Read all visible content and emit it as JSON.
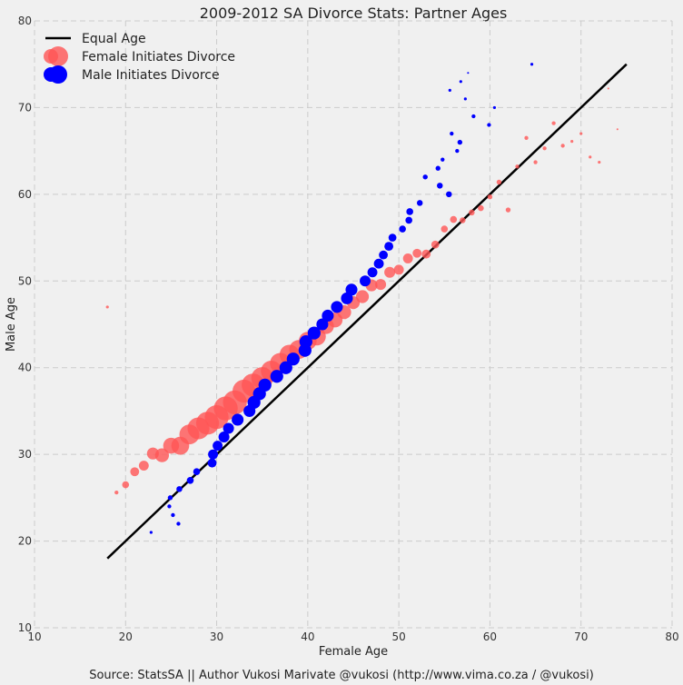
{
  "chart_data": {
    "type": "scatter",
    "title": "2009-2012 SA Divorce Stats: Partner Ages",
    "xlabel": "Female Age",
    "ylabel": "Male Age",
    "xlim": [
      10,
      80
    ],
    "ylim": [
      10,
      80
    ],
    "xticks": [
      10,
      20,
      30,
      40,
      50,
      60,
      70,
      80
    ],
    "yticks": [
      10,
      20,
      30,
      40,
      50,
      60,
      70,
      80
    ],
    "grid": true,
    "legend_position": "top-left",
    "legend": [
      "Equal Age",
      "Female Initiates Divorce",
      "Male Initiates Divorce"
    ],
    "equal_age_line": {
      "name": "Equal Age",
      "color": "#000000",
      "x": [
        18,
        75
      ],
      "y": [
        18,
        75
      ]
    },
    "series": [
      {
        "name": "Female Initiates Divorce",
        "color": "#ff5555",
        "opacity": 0.8,
        "points": [
          [
            18,
            47,
            2
          ],
          [
            19,
            25.6,
            3
          ],
          [
            20,
            26.5,
            6
          ],
          [
            21,
            28,
            8
          ],
          [
            22,
            28.7,
            9
          ],
          [
            23,
            30.1,
            11
          ],
          [
            24,
            29.9,
            13
          ],
          [
            25,
            31,
            15
          ],
          [
            26,
            31,
            17
          ],
          [
            27,
            32.3,
            19
          ],
          [
            28,
            33,
            21
          ],
          [
            29,
            33.6,
            22
          ],
          [
            30,
            34.3,
            23
          ],
          [
            31,
            35.3,
            23
          ],
          [
            32,
            36,
            23
          ],
          [
            33,
            37.3,
            22
          ],
          [
            34,
            38,
            22
          ],
          [
            35,
            38.8,
            21
          ],
          [
            36,
            39.6,
            20
          ],
          [
            37,
            40.5,
            20
          ],
          [
            38,
            41.5,
            19
          ],
          [
            39,
            42.1,
            18
          ],
          [
            40,
            43.1,
            17
          ],
          [
            41,
            43.6,
            17
          ],
          [
            42,
            44.8,
            15
          ],
          [
            43,
            45.5,
            14
          ],
          [
            44,
            46.4,
            13
          ],
          [
            45,
            47.5,
            12
          ],
          [
            46,
            48.2,
            12
          ],
          [
            47,
            49.5,
            11
          ],
          [
            48,
            49.6,
            10
          ],
          [
            49,
            51,
            10
          ],
          [
            50,
            51.3,
            9
          ],
          [
            51,
            52.6,
            9
          ],
          [
            52,
            53.2,
            8
          ],
          [
            53,
            53.1,
            8
          ],
          [
            54,
            54.2,
            7
          ],
          [
            55,
            56,
            6
          ],
          [
            56,
            57.1,
            6
          ],
          [
            57,
            57,
            5
          ],
          [
            58,
            57.9,
            5
          ],
          [
            59,
            58.4,
            5
          ],
          [
            60,
            59.7,
            4
          ],
          [
            61,
            61.4,
            4
          ],
          [
            62,
            58.2,
            4
          ],
          [
            63,
            63.2,
            3
          ],
          [
            64,
            66.5,
            3
          ],
          [
            65,
            63.7,
            3
          ],
          [
            66,
            65.3,
            3
          ],
          [
            67,
            68.2,
            3
          ],
          [
            68,
            65.6,
            3
          ],
          [
            69,
            66.1,
            2
          ],
          [
            70,
            67,
            2
          ],
          [
            71,
            64.3,
            2
          ],
          [
            72,
            63.7,
            2
          ],
          [
            73,
            72.2,
            1
          ],
          [
            74,
            67.5,
            1
          ]
        ]
      },
      {
        "name": "Male Initiates Divorce",
        "color": "#0000ff",
        "opacity": 1,
        "points": [
          [
            22.8,
            21,
            2
          ],
          [
            24.8,
            24,
            3
          ],
          [
            25.2,
            23,
            3
          ],
          [
            25.8,
            22,
            3
          ],
          [
            24.9,
            25,
            4
          ],
          [
            25.9,
            26,
            5
          ],
          [
            27.1,
            27,
            6
          ],
          [
            27.8,
            28,
            6
          ],
          [
            29.5,
            29,
            8
          ],
          [
            29.6,
            30,
            9
          ],
          [
            30.1,
            31,
            9
          ],
          [
            30.8,
            32,
            10
          ],
          [
            31.3,
            33,
            10
          ],
          [
            32.3,
            34,
            11
          ],
          [
            33.6,
            35,
            11
          ],
          [
            34.1,
            36,
            12
          ],
          [
            34.7,
            37,
            12
          ],
          [
            35.3,
            38,
            12
          ],
          [
            36.6,
            39,
            12
          ],
          [
            37.6,
            40,
            12
          ],
          [
            38.4,
            41,
            12
          ],
          [
            39.7,
            42,
            12
          ],
          [
            39.8,
            43,
            12
          ],
          [
            40.7,
            44,
            12
          ],
          [
            41.6,
            45,
            11
          ],
          [
            42.2,
            46,
            11
          ],
          [
            43.2,
            47,
            11
          ],
          [
            44.3,
            48,
            11
          ],
          [
            44.8,
            49,
            11
          ],
          [
            46.3,
            50,
            10
          ],
          [
            47.1,
            51,
            9
          ],
          [
            47.8,
            52,
            9
          ],
          [
            48.3,
            53,
            8
          ],
          [
            48.9,
            54,
            8
          ],
          [
            49.3,
            55,
            7
          ],
          [
            50.4,
            56,
            6
          ],
          [
            51.1,
            57,
            6
          ],
          [
            51.2,
            58,
            6
          ],
          [
            52.3,
            59,
            5
          ],
          [
            52.9,
            62,
            4
          ],
          [
            54.3,
            63,
            4
          ],
          [
            54.5,
            61,
            5
          ],
          [
            54.8,
            64,
            3
          ],
          [
            55.5,
            60,
            5
          ],
          [
            55.6,
            72,
            2
          ],
          [
            55.8,
            67,
            3
          ],
          [
            56.4,
            65,
            3
          ],
          [
            56.7,
            66,
            4
          ],
          [
            56.8,
            73,
            2
          ],
          [
            57.3,
            71,
            2
          ],
          [
            57.6,
            74,
            1
          ],
          [
            58.2,
            69,
            3
          ],
          [
            59.9,
            68,
            3
          ],
          [
            60.5,
            70,
            2
          ],
          [
            64.6,
            75,
            2
          ]
        ]
      }
    ]
  },
  "footer": {
    "source": "Source: StatsSA || Author Vukosi Marivate @vukosi (http://www.vima.co.za / @vukosi)"
  }
}
